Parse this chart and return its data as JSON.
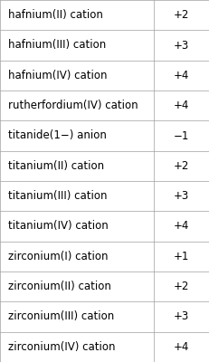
{
  "rows": [
    {
      "label": "hafnium(II) cation",
      "value": "+2"
    },
    {
      "label": "hafnium(III) cation",
      "value": "+3"
    },
    {
      "label": "hafnium(IV) cation",
      "value": "+4"
    },
    {
      "label": "rutherfordium(IV) cation",
      "value": "+4"
    },
    {
      "label": "titanide(1−) anion",
      "value": "−1"
    },
    {
      "label": "titanium(II) cation",
      "value": "+2"
    },
    {
      "label": "titanium(III) cation",
      "value": "+3"
    },
    {
      "label": "titanium(IV) cation",
      "value": "+4"
    },
    {
      "label": "zirconium(I) cation",
      "value": "+1"
    },
    {
      "label": "zirconium(II) cation",
      "value": "+2"
    },
    {
      "label": "zirconium(III) cation",
      "value": "+3"
    },
    {
      "label": "zirconium(IV) cation",
      "value": "+4"
    }
  ],
  "bg_color": "#ffffff",
  "border_color": "#a0a0a0",
  "text_color": "#000000",
  "font_size": 8.5,
  "col_split": 0.735,
  "fig_width": 2.31,
  "fig_height": 4.0,
  "dpi": 100
}
